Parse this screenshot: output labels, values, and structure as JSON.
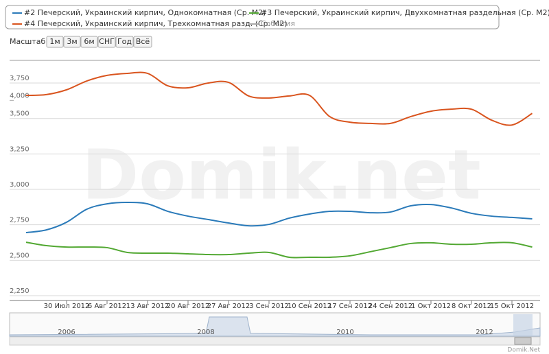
{
  "chart_data": {
    "type": "line",
    "categories": [
      null,
      null,
      "30 Июл 2012",
      null,
      "6 Авг 2012",
      null,
      "13 Авг 2012",
      null,
      "20 Авг 2012",
      null,
      "27 Авг 2012",
      null,
      "3 Сен 2012",
      null,
      "10 Сен 2012",
      null,
      "17 Сен 2012",
      null,
      "24 Сен 2012",
      null,
      "1 Окт 2012",
      null,
      "8 Окт 2012",
      null,
      "15 Окт 2012",
      null
    ],
    "series": [
      {
        "name": "#2 Печерский, Украинский кирпич, Однокомнатная (Ср. М2)",
        "color": "#2a7ab9",
        "values": [
          2695,
          2714,
          2768,
          2860,
          2898,
          2908,
          2898,
          2845,
          2811,
          2787,
          2763,
          2743,
          2753,
          2797,
          2826,
          2845,
          2845,
          2835,
          2840,
          2884,
          2893,
          2869,
          2831,
          2811,
          2802,
          2792
        ]
      },
      {
        "name": "#3 Печерский, Украинский кирпич, Двухкомнатная раздельная (Ср. М2)",
        "color": "#52a832",
        "values": [
          2627,
          2603,
          2593,
          2593,
          2589,
          2555,
          2550,
          2550,
          2545,
          2540,
          2540,
          2550,
          2555,
          2521,
          2521,
          2521,
          2531,
          2560,
          2589,
          2618,
          2623,
          2613,
          2613,
          2623,
          2623,
          2593
        ]
      },
      {
        "name": "#4 Печерский, Украинский кирпич, Трехкомнатная разд. (Ср. М2)",
        "color": "#d9541e",
        "axis": "y2",
        "values": [
          4025,
          4029,
          4053,
          4097,
          4125,
          4135,
          4135,
          4073,
          4063,
          4087,
          4090,
          4022,
          4012,
          4022,
          4025,
          3919,
          3891,
          3885,
          3885,
          3919,
          3946,
          3956,
          3956,
          3901,
          3877,
          3935
        ]
      }
    ],
    "events_label": "События",
    "ylim": [
      2216,
      3910
    ],
    "yticks": [
      {
        "value": 2250,
        "label": "2,250"
      },
      {
        "value": 2500,
        "label": "2,500"
      },
      {
        "value": 2750,
        "label": "2,750"
      },
      {
        "value": 3000,
        "label": "3,000"
      },
      {
        "value": 3250,
        "label": "3,250"
      },
      {
        "value": 3500,
        "label": "3,500"
      },
      {
        "value": 3750,
        "label": "3,750"
      }
    ],
    "y2lim": [
      3000,
      4200
    ],
    "y2ticks": [
      {
        "value": 4000,
        "label": "4,000"
      }
    ],
    "grid": true
  },
  "range_selector": {
    "label": "Масштаб",
    "buttons": [
      "1м",
      "3м",
      "6м",
      "СНГ",
      "Год",
      "Всё"
    ]
  },
  "navigator": {
    "labels": [
      "2006",
      "2008",
      "2010",
      "2012"
    ]
  },
  "watermark": "Domik.net",
  "credit": "Domik.Net"
}
